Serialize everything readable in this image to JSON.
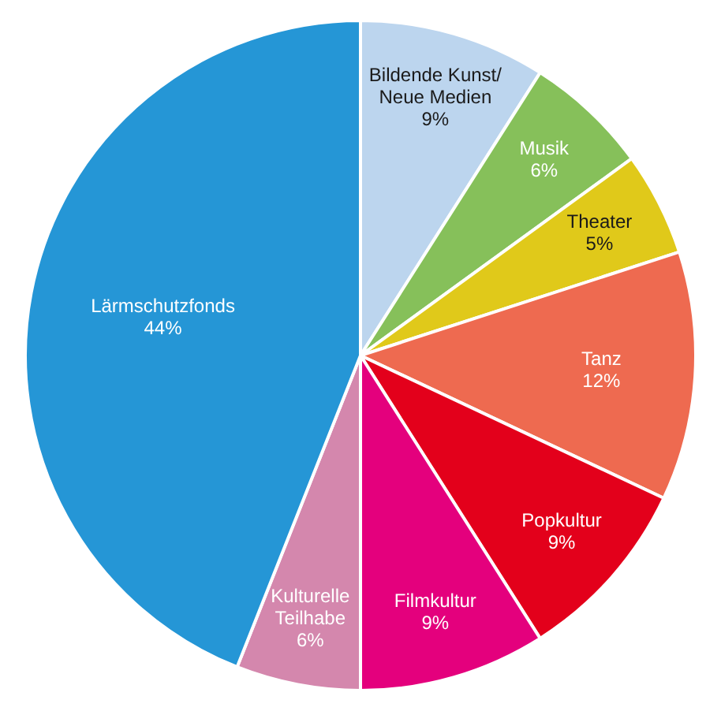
{
  "chart_data": {
    "type": "pie",
    "categories": [
      "Bildende Kunst/Neue Medien",
      "Musik",
      "Theater",
      "Tanz",
      "Popkultur",
      "Filmkultur",
      "Kulturelle Teilhabe",
      "Lärmschutzfonds"
    ],
    "values": [
      9,
      6,
      5,
      12,
      9,
      9,
      6,
      44
    ],
    "value_labels": [
      "9%",
      "6%",
      "5%",
      "12%",
      "9%",
      "9%",
      "6%",
      "44%"
    ],
    "colors": [
      "#bcd5ee",
      "#86c05a",
      "#e0c91a",
      "#ee6a50",
      "#e3001b",
      "#e4007d",
      "#d487ad",
      "#2596d6"
    ],
    "legend": false
  }
}
